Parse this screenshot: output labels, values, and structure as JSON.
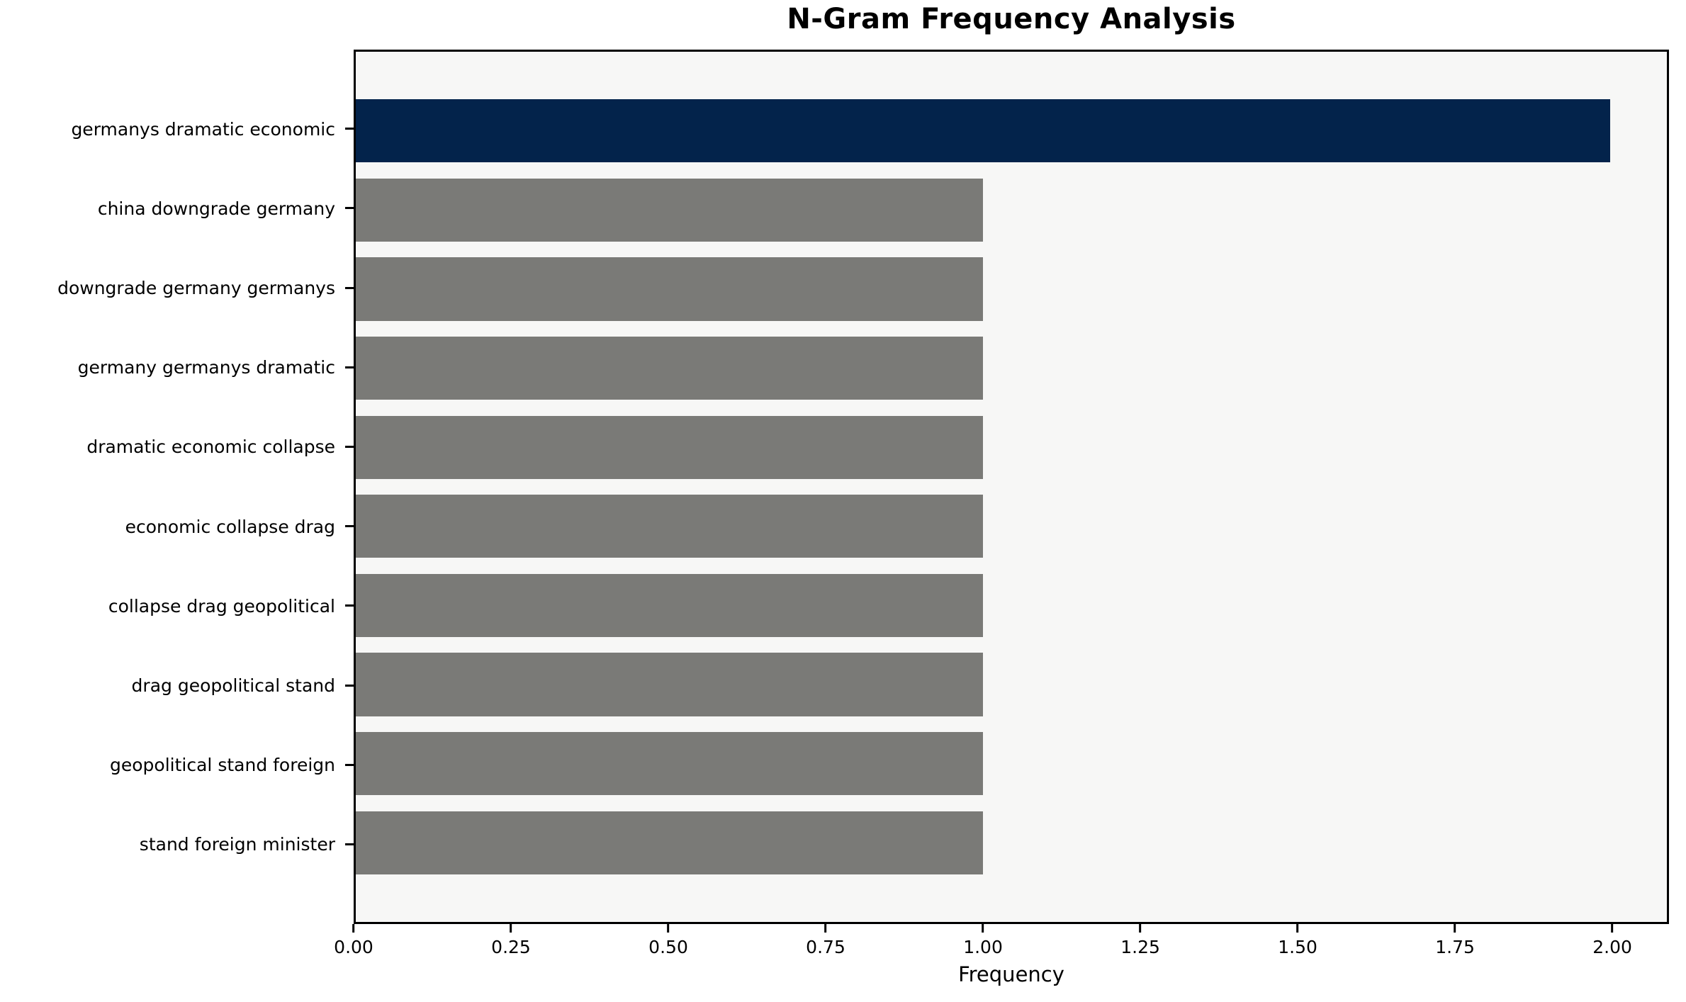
{
  "chart_data": {
    "type": "bar",
    "orientation": "horizontal",
    "title": "N-Gram Frequency Analysis",
    "xlabel": "Frequency",
    "ylabel": "",
    "categories": [
      "germanys dramatic economic",
      "china downgrade germany",
      "downgrade germany germanys",
      "germany germanys dramatic",
      "dramatic economic collapse",
      "economic collapse drag",
      "collapse drag geopolitical",
      "drag geopolitical stand",
      "geopolitical stand foreign",
      "stand foreign minister"
    ],
    "values": [
      2,
      1,
      1,
      1,
      1,
      1,
      1,
      1,
      1,
      1
    ],
    "bar_colors": [
      "#03234b",
      "#7a7a77",
      "#7a7a77",
      "#7a7a77",
      "#7a7a77",
      "#7a7a77",
      "#7a7a77",
      "#7a7a77",
      "#7a7a77",
      "#7a7a77"
    ],
    "highlight_color": "#03234b",
    "default_bar_color": "#7a7a77",
    "xlim": [
      0,
      2.09
    ],
    "xticks": [
      {
        "value": 0.0,
        "label": "0.00"
      },
      {
        "value": 0.25,
        "label": "0.25"
      },
      {
        "value": 0.5,
        "label": "0.50"
      },
      {
        "value": 0.75,
        "label": "0.75"
      },
      {
        "value": 1.0,
        "label": "1.00"
      },
      {
        "value": 1.25,
        "label": "1.25"
      },
      {
        "value": 1.5,
        "label": "1.50"
      },
      {
        "value": 1.75,
        "label": "1.75"
      },
      {
        "value": 2.0,
        "label": "2.00"
      }
    ],
    "plot_background": "#f7f7f6",
    "figure_background": "#ffffff",
    "spine_color": "#000000",
    "grid": false,
    "legend_position": "none",
    "bar_height_fraction": 0.8
  }
}
